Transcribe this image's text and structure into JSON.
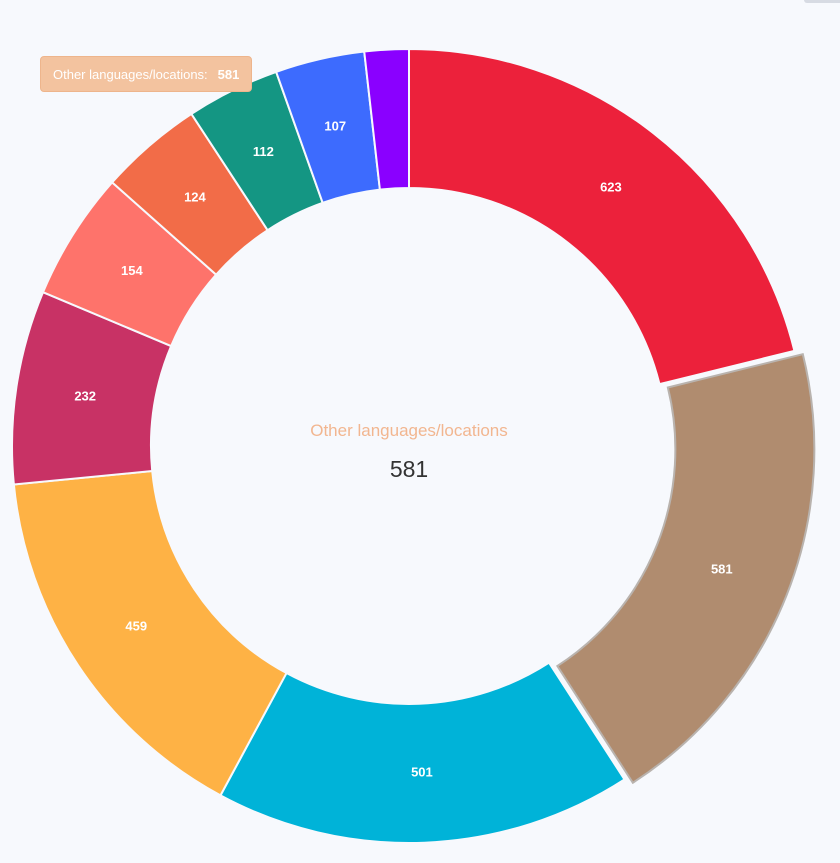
{
  "chart_data": {
    "type": "pie",
    "variant": "donut",
    "title": "",
    "slices": [
      {
        "label": "",
        "value": 623,
        "color": "#ec213b"
      },
      {
        "label": "Other languages/locations",
        "value": 581,
        "color": "#b08c6f"
      },
      {
        "label": "",
        "value": 501,
        "color": "#00b3d8"
      },
      {
        "label": "",
        "value": 459,
        "color": "#feb245"
      },
      {
        "label": "",
        "value": 232,
        "color": "#c83265"
      },
      {
        "label": "",
        "value": 154,
        "color": "#fe736b"
      },
      {
        "label": "",
        "value": 124,
        "color": "#f26c48"
      },
      {
        "label": "",
        "value": 112,
        "color": "#149683"
      },
      {
        "label": "",
        "value": 107,
        "color": "#3d6bfe"
      },
      {
        "label": "",
        "value": 53,
        "color": "#8a00ff"
      }
    ],
    "data_labels_shown": true,
    "legend": "none"
  },
  "hover": {
    "label": "Other languages/locations",
    "value": "581",
    "tooltip_label": "Other languages/locations:",
    "color": "#f2b690"
  }
}
